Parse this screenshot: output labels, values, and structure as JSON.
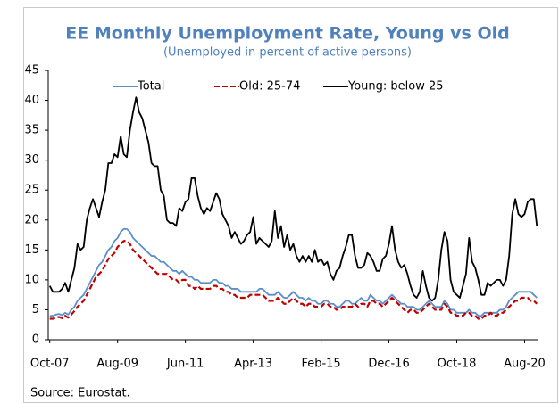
{
  "chart_data": {
    "type": "line",
    "title": "EE Monthly Unemployment Rate, Young vs Old",
    "subtitle": "(Unemployed in percent of active persons)",
    "source": "Source: Eurostat.",
    "legend": "top",
    "grid": false,
    "ylim": [
      0,
      45
    ],
    "yticks": [
      0,
      5,
      10,
      15,
      20,
      25,
      30,
      35,
      40,
      45
    ],
    "categories": [
      "Oct-07",
      null,
      null,
      null,
      null,
      null,
      null,
      null,
      null,
      null,
      null,
      null,
      null,
      null,
      null,
      null,
      null,
      null,
      null,
      null,
      null,
      null,
      "Aug-09",
      null,
      null,
      null,
      null,
      null,
      null,
      null,
      null,
      null,
      null,
      null,
      null,
      null,
      null,
      null,
      null,
      null,
      null,
      null,
      null,
      null,
      "Jun-11",
      null,
      null,
      null,
      null,
      null,
      null,
      null,
      null,
      null,
      null,
      null,
      null,
      null,
      null,
      null,
      null,
      null,
      null,
      null,
      null,
      null,
      "Apr-13",
      null,
      null,
      null,
      null,
      null,
      null,
      null,
      null,
      null,
      null,
      null,
      null,
      null,
      null,
      null,
      null,
      null,
      null,
      null,
      null,
      null,
      "Feb-15",
      null,
      null,
      null,
      null,
      null,
      null,
      null,
      null,
      null,
      null,
      null,
      null,
      null,
      null,
      null,
      null,
      null,
      null,
      null,
      null,
      null,
      "Dec-16",
      null,
      null,
      null,
      null,
      null,
      null,
      null,
      null,
      null,
      null,
      null,
      null,
      null,
      null,
      null,
      null,
      null,
      null,
      null,
      null,
      null,
      "Oct-18",
      null,
      null,
      null,
      null,
      null,
      null,
      null,
      null,
      null,
      null,
      null,
      null,
      null,
      null,
      null,
      null,
      null,
      null,
      null,
      null,
      null,
      "Aug-20",
      null,
      null,
      null,
      null
    ],
    "series": [
      {
        "name": "Total",
        "color": "#5b8fc9",
        "style": "solid",
        "values": [
          4,
          4,
          4.2,
          4.3,
          4.1,
          4.5,
          4.2,
          5,
          5.5,
          6.5,
          7,
          7.5,
          8.5,
          9.5,
          10.5,
          11.5,
          12.5,
          13,
          14,
          15,
          15.5,
          16.5,
          17,
          18,
          18.5,
          18.5,
          18,
          17,
          16.5,
          16,
          15.5,
          15,
          14.5,
          14,
          14,
          13.5,
          13,
          13,
          12.5,
          12,
          11.5,
          11.5,
          11,
          11.5,
          11,
          10.5,
          10.5,
          10,
          10,
          9.5,
          9.5,
          9.5,
          9.5,
          10,
          10,
          9.5,
          9.5,
          9,
          9,
          8.5,
          8.5,
          8.5,
          8,
          8,
          8,
          8,
          8,
          8,
          8.5,
          8.5,
          8,
          7.5,
          7.5,
          7.5,
          8,
          7.5,
          7,
          7,
          7.5,
          8,
          7.5,
          7,
          7,
          6.5,
          7,
          6.5,
          6.5,
          6,
          6,
          6.5,
          6.5,
          6,
          6,
          5.5,
          5.5,
          6,
          6.5,
          6.5,
          6,
          6,
          6.5,
          7,
          6.5,
          6.5,
          7.5,
          7,
          6.5,
          6.5,
          6,
          6.5,
          7,
          7.5,
          7,
          6.5,
          6,
          6,
          5.5,
          5.5,
          5.5,
          5,
          5,
          5.5,
          6,
          6.5,
          6,
          5.5,
          5.5,
          5.5,
          6.5,
          6,
          5,
          5,
          4.5,
          4.5,
          4.5,
          4.5,
          5,
          4.5,
          4.5,
          4,
          4,
          4.5,
          4.5,
          4.5,
          4.5,
          4.5,
          5,
          5,
          5.5,
          6.5,
          7,
          7.5,
          8,
          8,
          8,
          8,
          8,
          7.5,
          7
        ]
      },
      {
        "name": "Old: 25-74",
        "color": "#c00000",
        "style": "dashed",
        "values": [
          3.5,
          3.5,
          3.7,
          3.8,
          3.6,
          4,
          3.7,
          4.2,
          4.8,
          5.5,
          6,
          6.5,
          7.5,
          8.5,
          9.5,
          10.5,
          11,
          11.5,
          12.5,
          13.5,
          14,
          14.5,
          15.5,
          16,
          16.5,
          16.5,
          16,
          15,
          14.5,
          14,
          13.5,
          13,
          12.5,
          12,
          11.5,
          11,
          11,
          11,
          11,
          10.5,
          10,
          10,
          9.5,
          10,
          10,
          9,
          9,
          8.5,
          9,
          8.5,
          8.5,
          8.5,
          8.5,
          9,
          9,
          8.5,
          8.5,
          8,
          8,
          7.5,
          7.5,
          7,
          7,
          7,
          7,
          7.5,
          7.5,
          7.5,
          7.5,
          7.5,
          7,
          6.5,
          6.5,
          6.5,
          7,
          6.5,
          6,
          6,
          6.5,
          7,
          6.5,
          6,
          6,
          5.5,
          6,
          6,
          5.5,
          5.5,
          5.5,
          6,
          6,
          5.5,
          5.5,
          5,
          5,
          5.5,
          5.5,
          5.5,
          5.5,
          6,
          5.5,
          6,
          6,
          5.5,
          6.5,
          6.5,
          6,
          6,
          5.5,
          6,
          6.5,
          7,
          6.5,
          6,
          5.5,
          5,
          4.5,
          5,
          5,
          4.5,
          4.5,
          5,
          5.5,
          6,
          5.5,
          5,
          5,
          5,
          6,
          5.5,
          4.5,
          4.5,
          4,
          4,
          4,
          4.5,
          4.5,
          4,
          4,
          3.5,
          3.5,
          4,
          4,
          4.5,
          4,
          4,
          4.5,
          4.5,
          5,
          5.5,
          6,
          6.5,
          6.5,
          7,
          7,
          7,
          6.5,
          6.5,
          6
        ]
      },
      {
        "name": "Young: below 25",
        "color": "#000000",
        "style": "solid",
        "values": [
          9,
          8,
          8,
          8,
          8.5,
          9.5,
          8,
          10,
          12,
          16,
          15,
          15.5,
          20,
          22,
          23.5,
          22,
          20.5,
          23,
          25,
          29.5,
          29.5,
          31,
          30.5,
          34,
          31,
          30.5,
          35,
          38,
          40.5,
          38,
          37,
          35,
          33,
          29.5,
          29,
          29,
          25,
          24,
          20,
          19.5,
          19.5,
          19,
          22,
          21.5,
          23,
          23.5,
          27,
          27,
          24,
          22,
          21,
          22,
          21.5,
          23,
          24.5,
          23.5,
          21,
          20,
          19,
          17,
          18,
          17,
          16,
          16.5,
          17.5,
          18,
          20.5,
          16,
          17,
          16.5,
          16,
          15.5,
          16.5,
          21.5,
          17,
          19,
          15.5,
          17.5,
          15,
          16,
          14,
          13,
          14,
          13,
          14,
          13,
          15,
          13,
          13.5,
          12.5,
          13,
          11,
          10,
          11.5,
          12,
          14,
          15.5,
          17.5,
          17.5,
          14,
          12,
          12,
          12.5,
          14.5,
          14,
          13,
          11.5,
          11.5,
          13.5,
          14,
          16,
          19,
          15,
          13,
          12,
          12.5,
          11,
          9,
          7.5,
          7,
          8,
          11.5,
          9,
          7,
          6.5,
          7,
          10,
          15,
          18,
          16.5,
          10,
          8,
          7.5,
          7,
          9,
          11,
          17,
          13,
          12,
          10,
          7.5,
          7.5,
          9.5,
          9,
          9.5,
          10,
          10,
          9,
          10,
          14,
          21,
          23.5,
          21,
          20.5,
          21,
          23,
          23.5,
          23.5,
          19
        ]
      }
    ]
  }
}
